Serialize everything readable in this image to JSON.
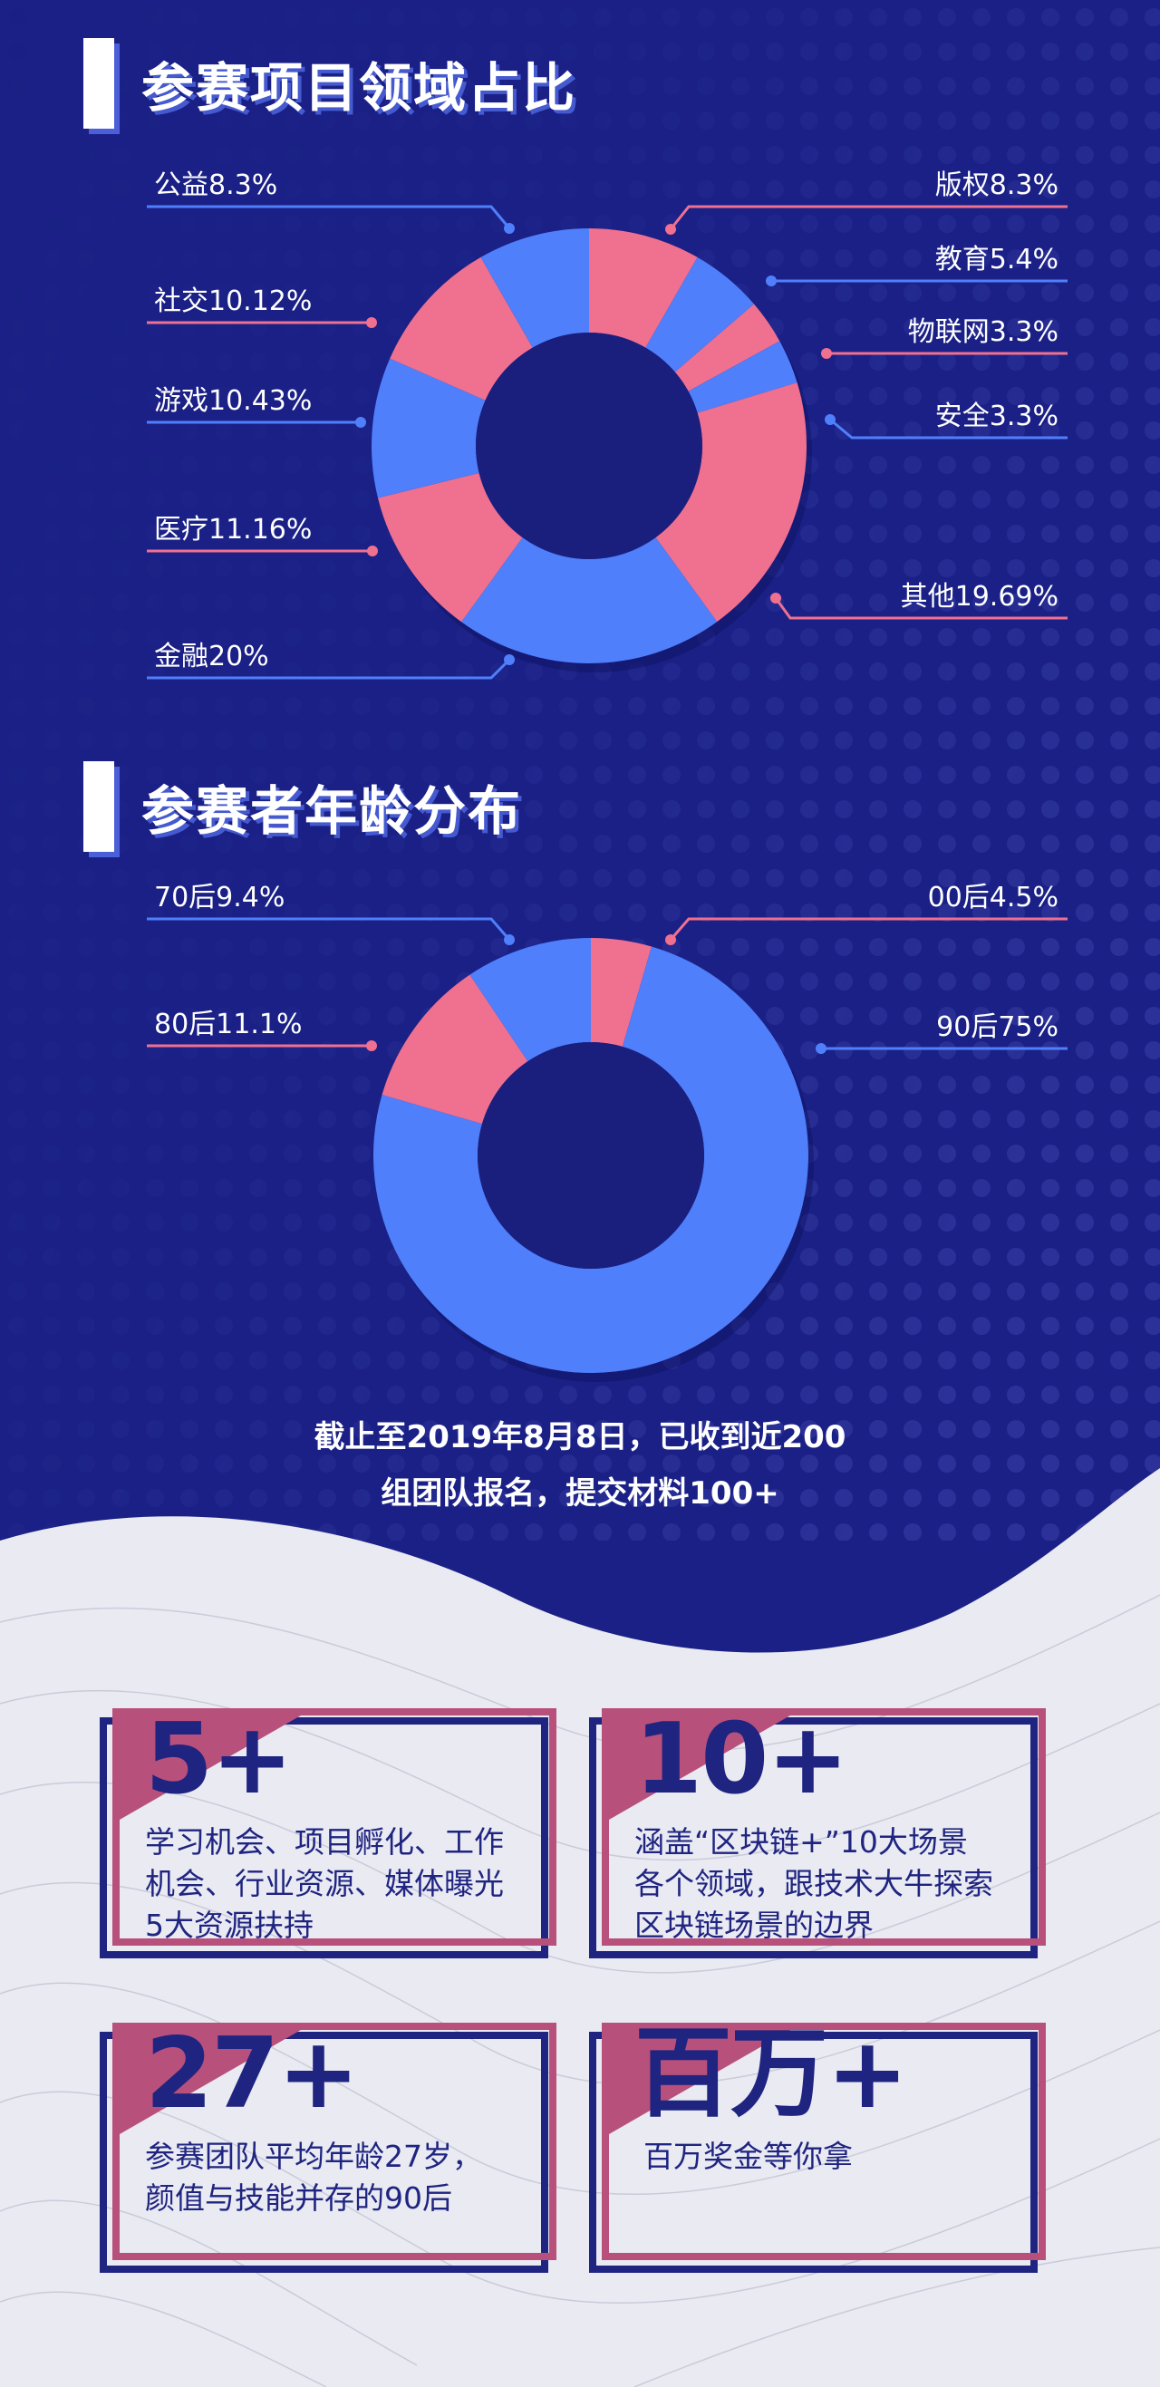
{
  "sections": {
    "domain_title": "参赛项目领域占比",
    "age_title": "参赛者年龄分布"
  },
  "colors": {
    "background_navy": "#1a2085",
    "slice_blue": "#4f7ffb",
    "slice_pink": "#f07090",
    "leader_blue": "#4f7ffb",
    "leader_pink": "#f07090",
    "card_navy": "#1f2480",
    "card_pink": "#b8507c",
    "lower_background": "#e9eaf2"
  },
  "chart_data": [
    {
      "type": "pie",
      "title": "参赛项目领域占比",
      "donut": true,
      "slices": [
        {
          "label": "版权8.3%",
          "value": 8.3,
          "color": "pink"
        },
        {
          "label": "教育5.4%",
          "value": 5.4,
          "color": "blue"
        },
        {
          "label": "物联网3.3%",
          "value": 3.3,
          "color": "pink"
        },
        {
          "label": "安全3.3%",
          "value": 3.3,
          "color": "blue"
        },
        {
          "label": "其他19.69%",
          "value": 19.69,
          "color": "pink"
        },
        {
          "label": "金融20%",
          "value": 20,
          "color": "blue"
        },
        {
          "label": "医疗11.16%",
          "value": 11.16,
          "color": "pink"
        },
        {
          "label": "游戏10.43%",
          "value": 10.43,
          "color": "blue"
        },
        {
          "label": "社交10.12%",
          "value": 10.12,
          "color": "pink"
        },
        {
          "label": "公益8.3%",
          "value": 8.3,
          "color": "blue"
        }
      ]
    },
    {
      "type": "pie",
      "title": "参赛者年龄分布",
      "donut": true,
      "slices": [
        {
          "label": "00后4.5%",
          "value": 4.5,
          "color": "pink"
        },
        {
          "label": "90后75%",
          "value": 75,
          "color": "blue"
        },
        {
          "label": "80后11.1%",
          "value": 11.1,
          "color": "pink"
        },
        {
          "label": "70后9.4%",
          "value": 9.4,
          "color": "blue"
        }
      ]
    }
  ],
  "summary": {
    "line1": "截止至2019年8月8日，已收到近200",
    "line2": "组团队报名，提交材料100+"
  },
  "cards": [
    {
      "big": "5+",
      "lines": [
        "学习机会、项目孵化、工作",
        "机会、行业资源、媒体曝光",
        "5大资源扶持"
      ]
    },
    {
      "big": "10+",
      "lines": [
        "涵盖“区块链+”10大场景",
        "各个领域，跟技术大牛探索",
        "区块链场景的边界"
      ]
    },
    {
      "big": "27+",
      "lines": [
        "参赛团队平均年龄27岁，",
        "颜值与技能并存的90后"
      ]
    },
    {
      "big": "百万+",
      "lines": [
        "百万奖金等你拿"
      ]
    }
  ]
}
